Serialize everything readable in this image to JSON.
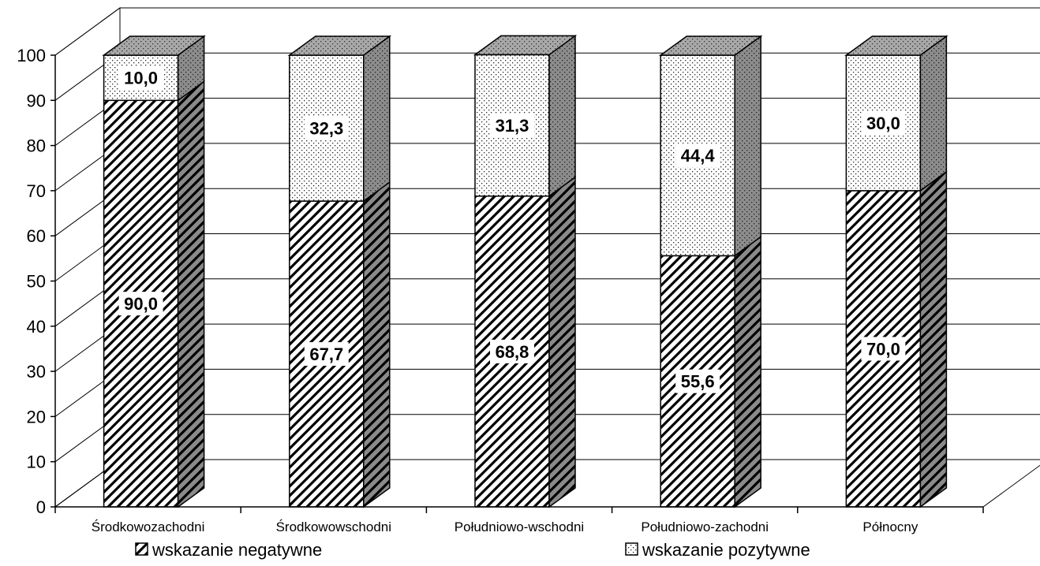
{
  "chart_data": {
    "type": "bar",
    "stacked": true,
    "three_d": true,
    "title": "",
    "xlabel": "",
    "ylabel": "",
    "ylim": [
      0,
      100
    ],
    "yticks": [
      "0",
      "10",
      "20",
      "30",
      "40",
      "50",
      "60",
      "70",
      "80",
      "90",
      "100"
    ],
    "grid": true,
    "legend_position": "bottom",
    "categories": [
      "Środkowozachodni",
      "Środkowowschodni",
      "Południowo-wschodni",
      "Południowo-zachodni",
      "Północny"
    ],
    "series": [
      {
        "name": "wskazanie negatywne",
        "pattern": "diagonal-hatch",
        "values": [
          90.0,
          67.7,
          68.8,
          55.6,
          70.0
        ],
        "labels": [
          "90,0",
          "67,7",
          "68,8",
          "55,6",
          "70,0"
        ]
      },
      {
        "name": "wskazanie pozytywne",
        "pattern": "dotted",
        "values": [
          10.0,
          32.3,
          31.3,
          44.4,
          30.0
        ],
        "labels": [
          "10,0",
          "32,3",
          "31,3",
          "44,4",
          "30,0"
        ]
      }
    ]
  }
}
